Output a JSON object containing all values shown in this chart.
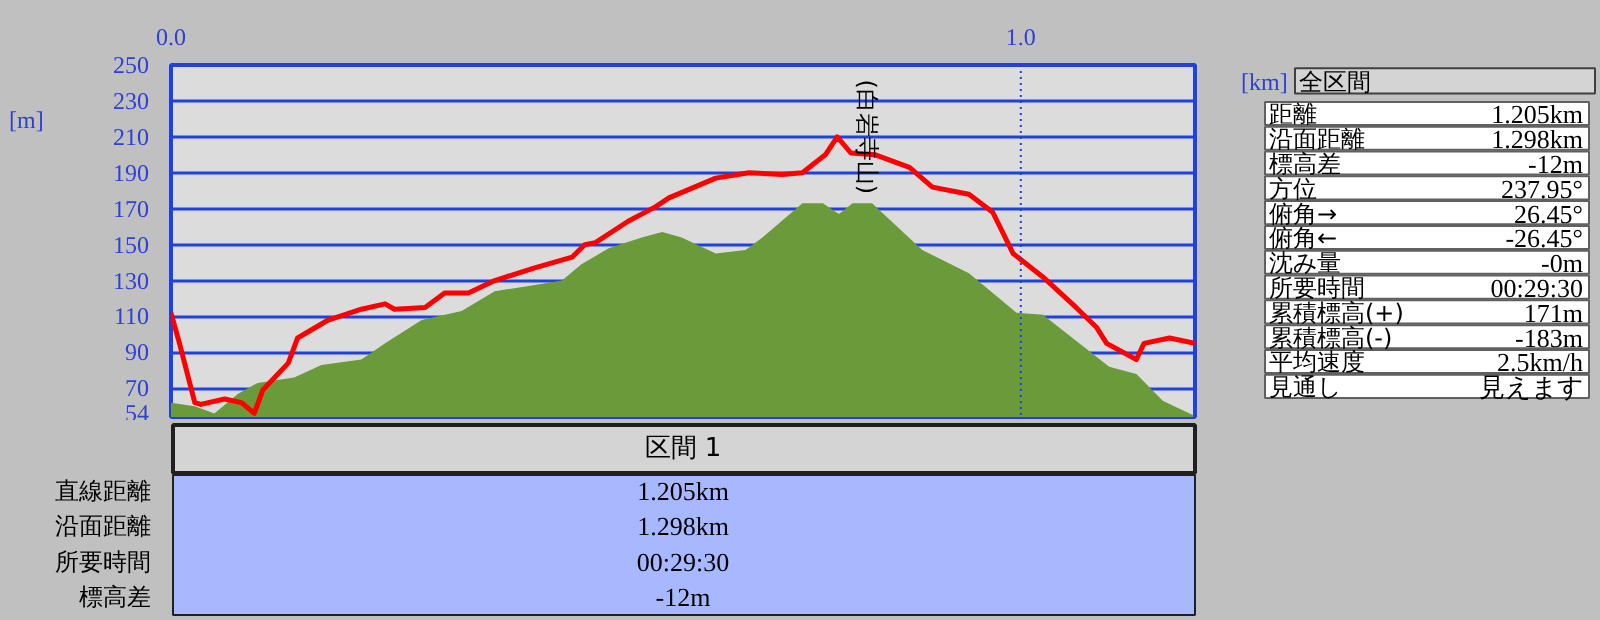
{
  "chart_data": {
    "type": "line",
    "xlabel": "[km]",
    "ylabel": "[m]",
    "xlim": [
      0,
      1.205
    ],
    "xticks": [
      {
        "value": 0,
        "label": "0.0"
      },
      {
        "value": 1,
        "label": "1.0"
      }
    ],
    "ylim": [
      54,
      250
    ],
    "yticks": [
      54,
      70,
      90,
      110,
      130,
      150,
      170,
      190,
      210,
      230,
      250
    ],
    "grid": "y",
    "ref_lines": [
      {
        "axis": "x",
        "value": 1,
        "color": "#2040e0",
        "line_style": "dotted"
      }
    ],
    "series": [
      {
        "type": "area",
        "color": "#6a9a3a",
        "x": [
          0,
          0.028,
          0.051,
          0.079,
          0.102,
          0.145,
          0.177,
          0.224,
          0.252,
          0.295,
          0.342,
          0.381,
          0.421,
          0.46,
          0.483,
          0.515,
          0.554,
          0.578,
          0.601,
          0.641,
          0.676,
          0.696,
          0.743,
          0.767,
          0.786,
          0.802,
          0.825,
          0.884,
          0.939,
          0.995,
          1.026,
          1.104,
          1.136,
          1.167,
          1.203
        ],
        "values": [
          62,
          60,
          56,
          67,
          73,
          76,
          83,
          86,
          95,
          108,
          113,
          124,
          127,
          130,
          139,
          148,
          154,
          157,
          154,
          145,
          147,
          154,
          173,
          173,
          167,
          173,
          173,
          147,
          134,
          112,
          111,
          82,
          78,
          63,
          55
        ]
      },
      {
        "color": "#ff0000",
        "x": [
          0,
          0.01,
          0.028,
          0.035,
          0.063,
          0.083,
          0.098,
          0.108,
          0.138,
          0.149,
          0.185,
          0.224,
          0.252,
          0.263,
          0.299,
          0.322,
          0.35,
          0.381,
          0.428,
          0.472,
          0.487,
          0.499,
          0.538,
          0.57,
          0.586,
          0.641,
          0.68,
          0.719,
          0.743,
          0.77,
          0.784,
          0.8,
          0.829,
          0.869,
          0.896,
          0.939,
          0.967,
          0.991,
          1.026,
          1.065,
          1.089,
          1.101,
          1.136,
          1.145,
          1.175,
          1.205
        ],
        "values": [
          112,
          95,
          62,
          61,
          64,
          62,
          56,
          69,
          84,
          98,
          108,
          114,
          117,
          114,
          115,
          123,
          123,
          130,
          137,
          143,
          150,
          151,
          163,
          171,
          176,
          187,
          190,
          189,
          190,
          200,
          210,
          201,
          200,
          193,
          182,
          178,
          168,
          145,
          132,
          115,
          104,
          95,
          86,
          95,
          98,
          95
        ]
      }
    ],
    "annotations": [
      {
        "text": "(白岩寺山)",
        "x": 0.8,
        "y": 210
      },
      "全区間",
      "距離",
      "1.205km",
      "沿面距離",
      "1.298km",
      "標高差",
      "-12m",
      "方位",
      "237.95°",
      "俯角→",
      "26.45°",
      "俯角←",
      "-26.45°",
      "沈み量",
      "-0m",
      "所要時間",
      "00:29:30",
      "累積標高(+)",
      "171m",
      "累積標高(-)",
      "-183m",
      "平均速度",
      "2.5km/h",
      "見通し",
      "見えます",
      "区間 1",
      "直線距離",
      "1.205km",
      "沿面距離",
      "1.298km",
      "所要時間",
      "00:29:30",
      "標高差",
      "-12m"
    ]
  }
}
